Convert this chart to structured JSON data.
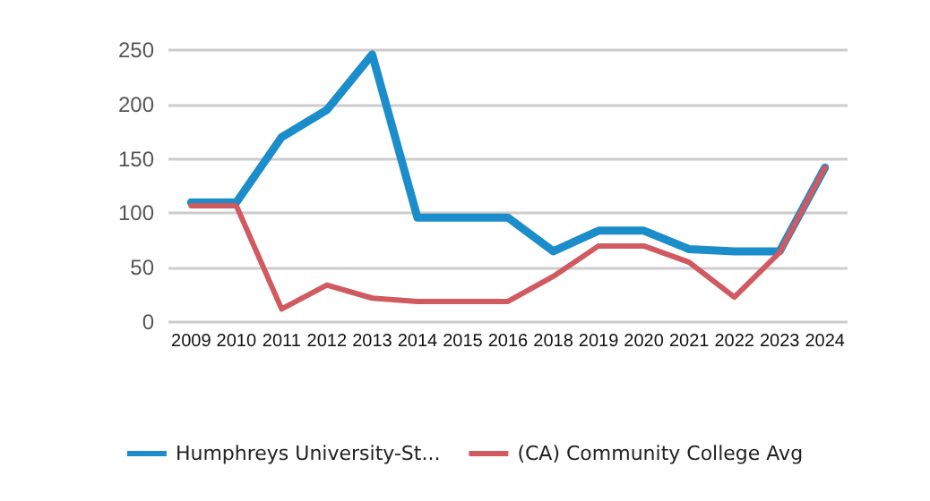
{
  "chart_data": {
    "type": "line",
    "categories": [
      "2009",
      "2010",
      "2011",
      "2012",
      "2013",
      "2014",
      "2015",
      "2016",
      "2018",
      "2019",
      "2020",
      "2021",
      "2022",
      "2023",
      "2024"
    ],
    "series": [
      {
        "name": "Humphreys University-St...",
        "color": "#1b8dcb",
        "values": [
          110,
          110,
          170,
          195,
          246,
          96,
          96,
          96,
          65,
          84,
          84,
          67,
          65,
          65,
          142
        ]
      },
      {
        "name": "(CA) Community College Avg",
        "color": "#d05a5f",
        "values": [
          107,
          107,
          12,
          34,
          22,
          19,
          19,
          19,
          42,
          70,
          70,
          55,
          23,
          64,
          142
        ]
      }
    ],
    "ylim": [
      0,
      250
    ],
    "yticks": [
      0,
      50,
      100,
      150,
      200,
      250
    ],
    "grid": "y",
    "legend": "bottom",
    "marker": "none",
    "line_style": "solid"
  }
}
